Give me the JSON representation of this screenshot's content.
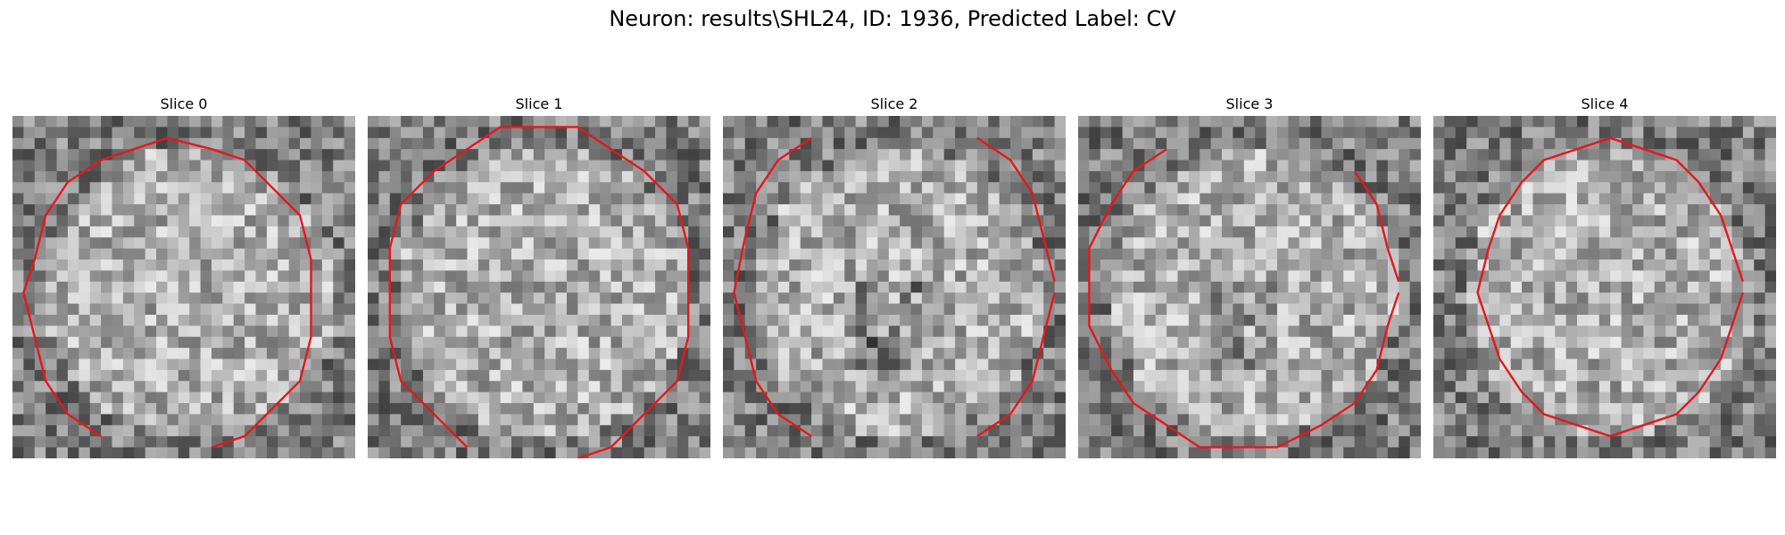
{
  "figure": {
    "title": "Neuron: results\\SHL24, ID: 1936, Predicted Label: CV"
  },
  "style": {
    "contour_color": "#e4181b",
    "colormap": "gray"
  },
  "panels": [
    {
      "title": "Slice 0",
      "contour_style": "closed-bottom-gap"
    },
    {
      "title": "Slice 1",
      "contour_style": "closed-bottom-gap"
    },
    {
      "title": "Slice 2",
      "contour_style": "open-top-and-bottom"
    },
    {
      "title": "Slice 3",
      "contour_style": "open-top-right"
    },
    {
      "title": "Slice 4",
      "contour_style": "closed"
    }
  ]
}
